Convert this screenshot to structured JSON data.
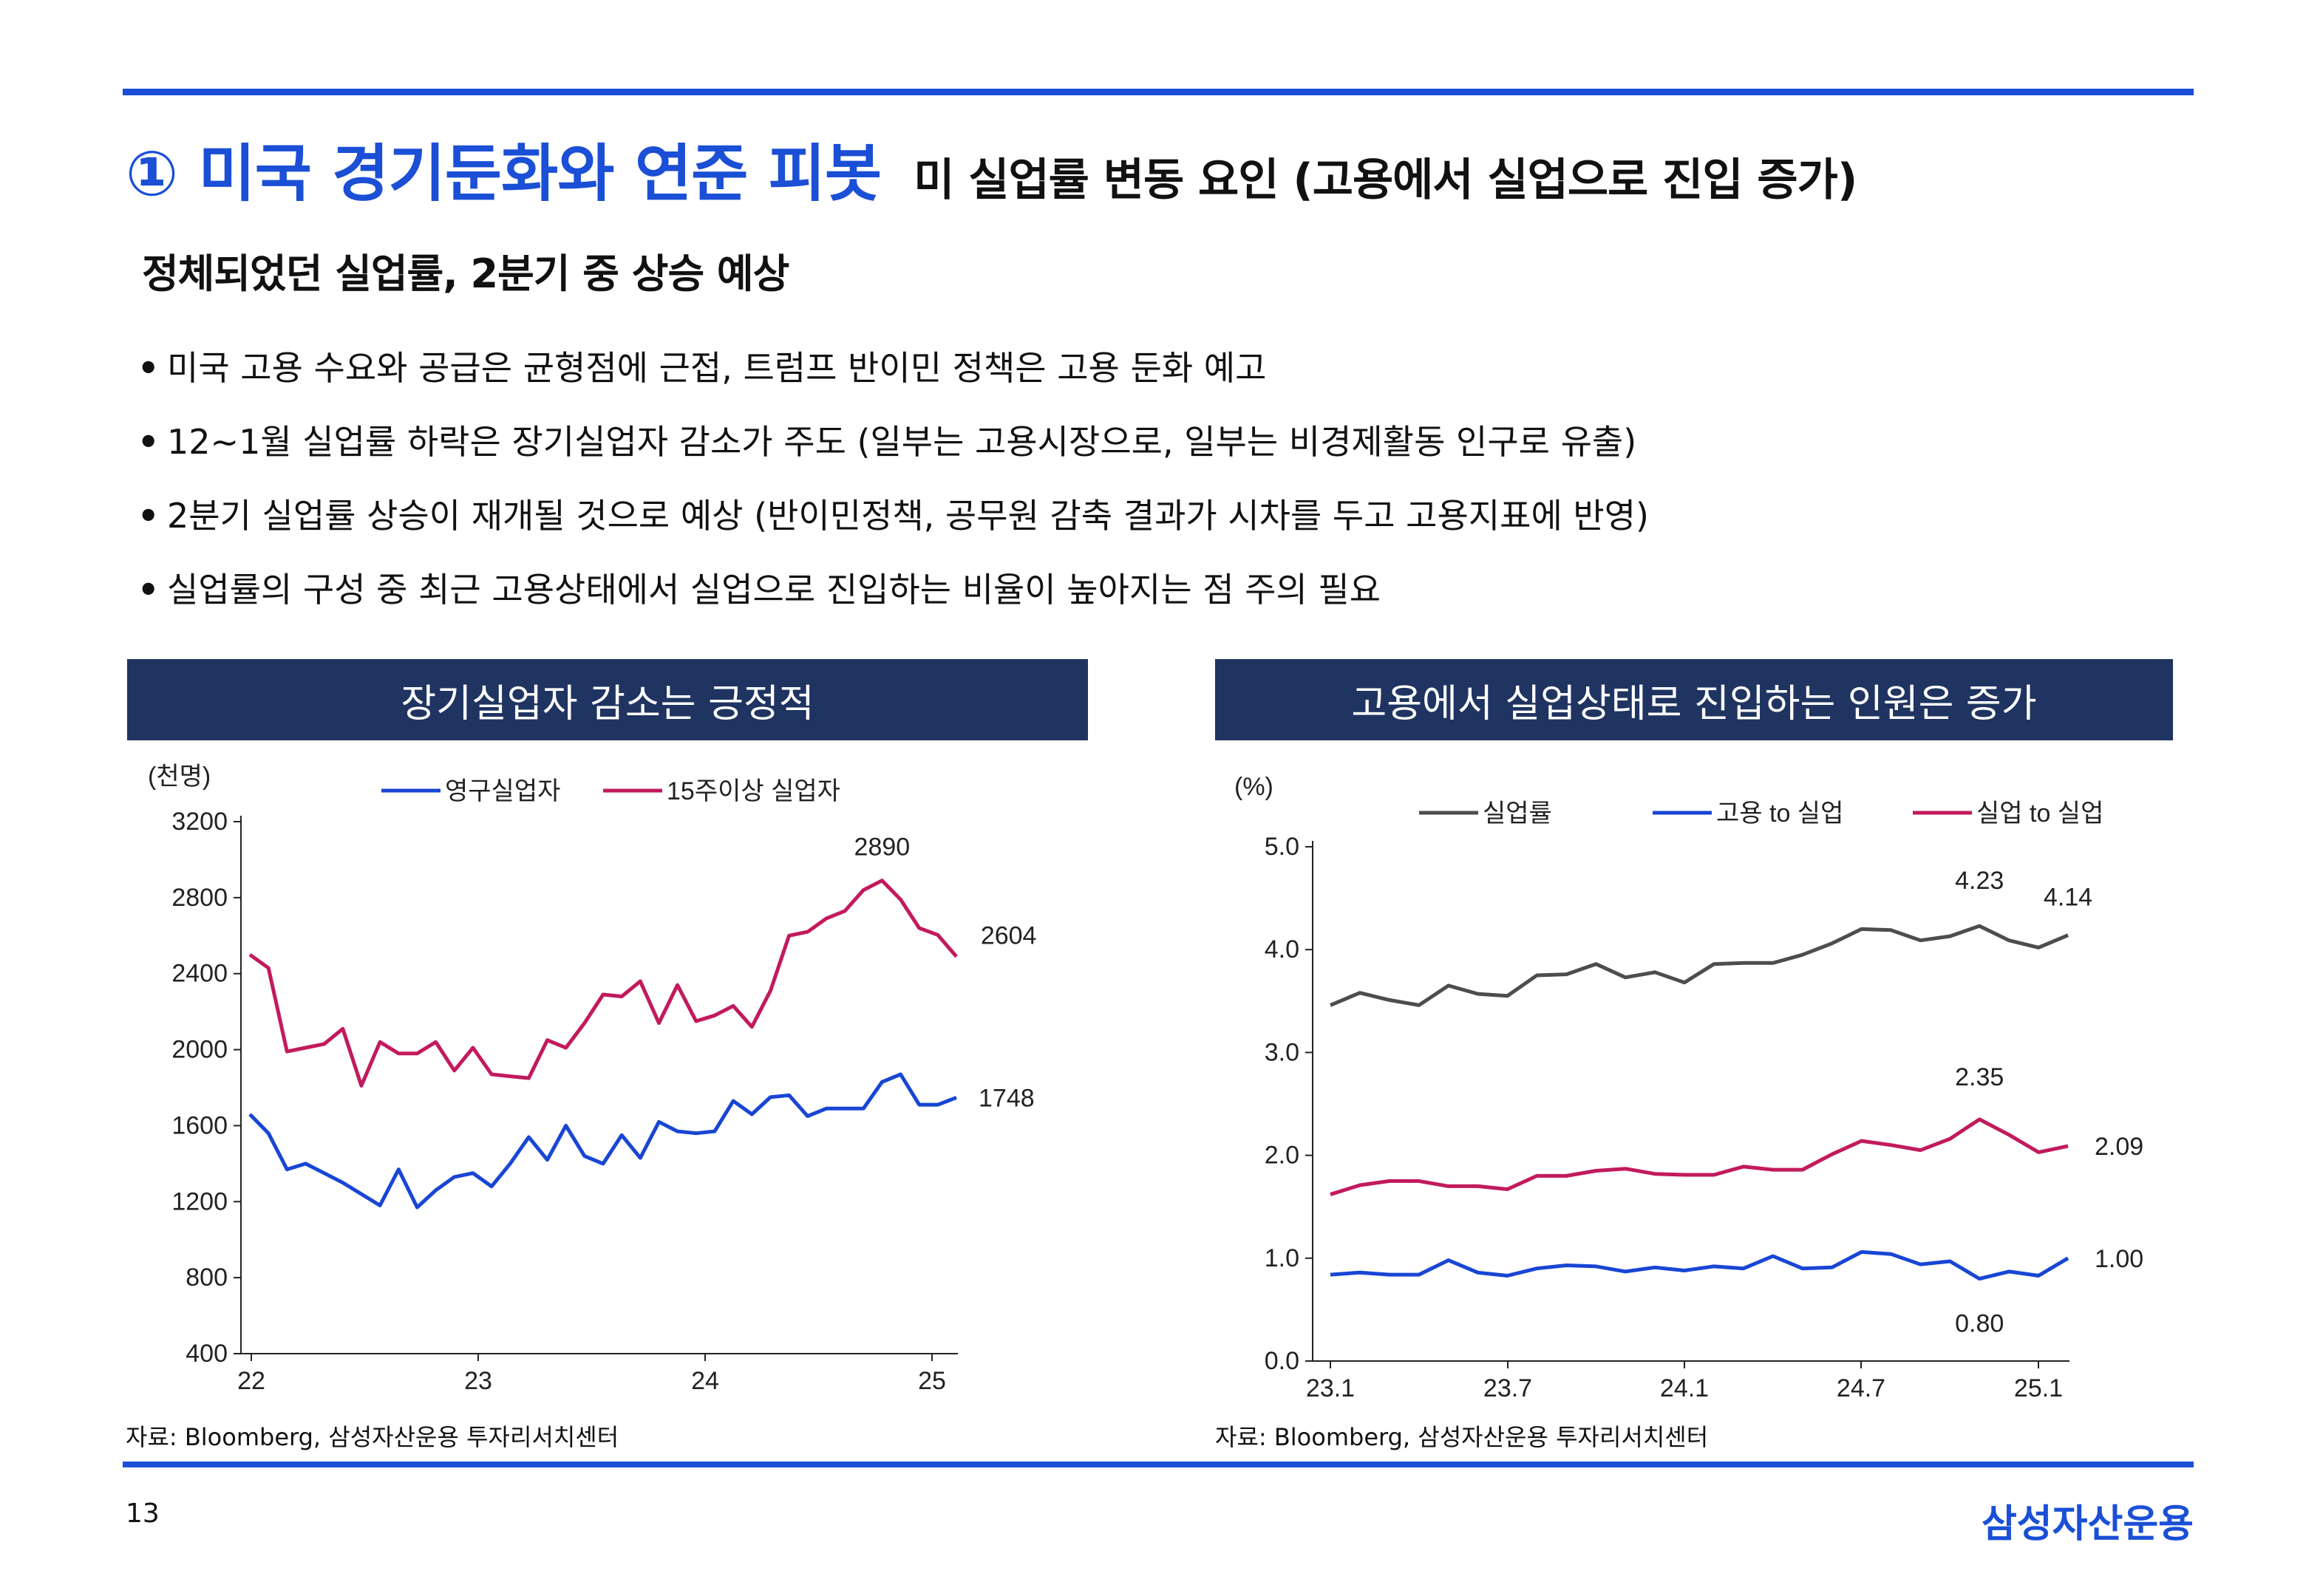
{
  "header": {
    "title": "① 미국 경기둔화와 연준 피봇",
    "subtitle": "미 실업률 변동 요인 (고용에서 실업으로 진입 증가)"
  },
  "headline": "정체되었던 실업률, 2분기 중 상승 예상",
  "bullets": [
    "미국 고용 수요와 공급은 균형점에 근접, 트럼프 반이민 정책은 고용 둔화 예고",
    "12~1월 실업률 하락은 장기실업자 감소가 주도 (일부는 고용시장으로, 일부는 비경제활동 인구로 유출)",
    "2분기 실업률 상승이 재개될 것으로 예상 (반이민정책, 공무원 감축 결과가 시차를 두고 고용지표에 반영)",
    "실업률의 구성 중 최근 고용상태에서 실업으로 진입하는 비율이 높아지는 점 주의 필요"
  ],
  "bullet_marker": "•",
  "chart_data": [
    {
      "type": "line",
      "panel_title": "장기실업자 감소는 긍정적",
      "unit_label": "(천명)",
      "ylim": [
        400,
        3200
      ],
      "yticks": [
        "3200",
        "2800",
        "2400",
        "2000",
        "1600",
        "1200",
        "800",
        "400"
      ],
      "xticks": [
        "22",
        "23",
        "24",
        "25"
      ],
      "series": [
        {
          "name": "영구실업자",
          "color": "#1846d4",
          "values": [
            1660,
            1560,
            1370,
            1400,
            1350,
            1300,
            1240,
            1180,
            1370,
            1170,
            1260,
            1330,
            1350,
            1280,
            1400,
            1540,
            1420,
            1600,
            1440,
            1400,
            1550,
            1430,
            1620,
            1570,
            1560,
            1570,
            1730,
            1660,
            1750,
            1760,
            1650,
            1690,
            1690,
            1690,
            1830,
            1870,
            1710,
            1710,
            1748
          ]
        },
        {
          "name": "15주이상 실업자",
          "color": "#c21a5e",
          "values": [
            2500,
            2430,
            1990,
            2010,
            2030,
            2110,
            1810,
            2040,
            1980,
            1980,
            2040,
            1890,
            2010,
            1870,
            1860,
            1850,
            2050,
            2010,
            2140,
            2290,
            2280,
            2360,
            2140,
            2340,
            2150,
            2180,
            2230,
            2120,
            2310,
            2600,
            2620,
            2690,
            2730,
            2840,
            2890,
            2790,
            2640,
            2604,
            2490
          ]
        }
      ],
      "annotations": [
        "2890",
        "2604",
        "1748"
      ]
    },
    {
      "type": "line",
      "panel_title": "고용에서 실업상태로 진입하는 인원은 증가",
      "unit_label": "(%)",
      "ylim": [
        0.0,
        5.0
      ],
      "yticks": [
        "5.0",
        "4.0",
        "3.0",
        "2.0",
        "1.0",
        "0.0"
      ],
      "xticks": [
        "23.1",
        "23.7",
        "24.1",
        "24.7",
        "25.1"
      ],
      "series": [
        {
          "name": "실업률",
          "color": "#4d4d4d",
          "values": [
            3.46,
            3.58,
            3.51,
            3.46,
            3.65,
            3.57,
            3.55,
            3.75,
            3.76,
            3.86,
            3.73,
            3.78,
            3.68,
            3.86,
            3.87,
            3.87,
            3.95,
            4.06,
            4.2,
            4.19,
            4.09,
            4.13,
            4.23,
            4.09,
            4.02,
            4.14
          ]
        },
        {
          "name": "고용 to 실업",
          "color": "#1846d4",
          "values": [
            0.84,
            0.86,
            0.84,
            0.84,
            0.98,
            0.86,
            0.83,
            0.9,
            0.93,
            0.92,
            0.87,
            0.91,
            0.88,
            0.92,
            0.9,
            1.02,
            0.9,
            0.91,
            1.06,
            1.04,
            0.94,
            0.97,
            0.8,
            0.87,
            0.83,
            1.0
          ]
        },
        {
          "name": "실업 to 실업",
          "color": "#c21a5e",
          "values": [
            1.62,
            1.71,
            1.75,
            1.75,
            1.7,
            1.7,
            1.67,
            1.8,
            1.8,
            1.85,
            1.87,
            1.82,
            1.81,
            1.81,
            1.89,
            1.86,
            1.86,
            2.01,
            2.14,
            2.1,
            2.05,
            2.16,
            2.35,
            2.2,
            2.03,
            2.09
          ]
        }
      ],
      "annotations": [
        "4.23",
        "4.14",
        "2.35",
        "2.09",
        "1.00",
        "0.80"
      ]
    }
  ],
  "sources": {
    "left": "자료: Bloomberg, 삼성자산운용 투자리서치센터",
    "right": "자료: Bloomberg, 삼성자산운용 투자리서치센터"
  },
  "footer": {
    "page_number": "13",
    "brand": "삼성자산운용"
  }
}
